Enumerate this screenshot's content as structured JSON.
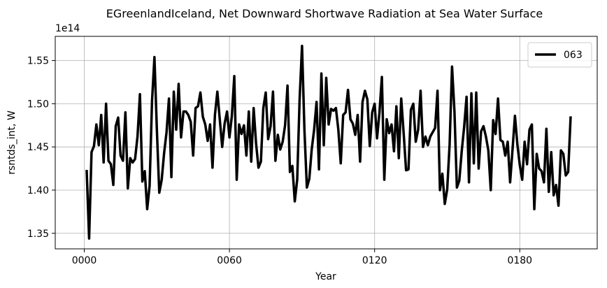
{
  "chart_data": {
    "type": "line",
    "title": "EGreenlandIceland, Net Downward Shortwave Radiation at Sea Water Surface",
    "xlabel": "Year",
    "ylabel": "rsntds_int, W",
    "y_offset_label": "1e14",
    "xlim": [
      -12,
      212
    ],
    "ylim": [
      1.332,
      1.578
    ],
    "x_ticks": [
      0,
      60,
      120,
      180
    ],
    "x_tick_labels": [
      "0000",
      "0060",
      "0120",
      "0180"
    ],
    "y_ticks": [
      1.35,
      1.4,
      1.45,
      1.5,
      1.55
    ],
    "y_tick_labels": [
      "1.35",
      "1.40",
      "1.45",
      "1.50",
      "1.55"
    ],
    "grid": true,
    "legend_position": "top-right",
    "series": [
      {
        "name": "063",
        "color": "#000000",
        "x_start": 1,
        "x_step": 1,
        "values": [
          1.422,
          1.344,
          1.444,
          1.451,
          1.476,
          1.452,
          1.487,
          1.432,
          1.5,
          1.434,
          1.43,
          1.406,
          1.474,
          1.484,
          1.44,
          1.434,
          1.49,
          1.402,
          1.437,
          1.432,
          1.436,
          1.462,
          1.511,
          1.41,
          1.422,
          1.378,
          1.405,
          1.503,
          1.554,
          1.47,
          1.397,
          1.412,
          1.443,
          1.467,
          1.506,
          1.415,
          1.514,
          1.47,
          1.523,
          1.461,
          1.491,
          1.491,
          1.487,
          1.479,
          1.44,
          1.495,
          1.497,
          1.513,
          1.485,
          1.476,
          1.457,
          1.476,
          1.426,
          1.487,
          1.514,
          1.482,
          1.45,
          1.477,
          1.491,
          1.461,
          1.486,
          1.532,
          1.412,
          1.476,
          1.465,
          1.475,
          1.44,
          1.491,
          1.433,
          1.495,
          1.454,
          1.426,
          1.433,
          1.495,
          1.513,
          1.459,
          1.474,
          1.514,
          1.434,
          1.464,
          1.447,
          1.456,
          1.475,
          1.521,
          1.421,
          1.428,
          1.387,
          1.412,
          1.505,
          1.567,
          1.469,
          1.403,
          1.413,
          1.447,
          1.47,
          1.502,
          1.424,
          1.535,
          1.452,
          1.53,
          1.476,
          1.494,
          1.492,
          1.495,
          1.47,
          1.431,
          1.487,
          1.49,
          1.516,
          1.482,
          1.477,
          1.464,
          1.487,
          1.433,
          1.502,
          1.515,
          1.505,
          1.451,
          1.49,
          1.5,
          1.46,
          1.49,
          1.531,
          1.412,
          1.482,
          1.466,
          1.476,
          1.445,
          1.497,
          1.437,
          1.506,
          1.466,
          1.423,
          1.424,
          1.493,
          1.5,
          1.456,
          1.47,
          1.515,
          1.45,
          1.462,
          1.452,
          1.462,
          1.467,
          1.472,
          1.515,
          1.4,
          1.419,
          1.384,
          1.401,
          1.453,
          1.543,
          1.491,
          1.403,
          1.411,
          1.445,
          1.473,
          1.508,
          1.409,
          1.512,
          1.431,
          1.513,
          1.425,
          1.468,
          1.474,
          1.462,
          1.446,
          1.4,
          1.481,
          1.465,
          1.506,
          1.458,
          1.456,
          1.44,
          1.456,
          1.409,
          1.447,
          1.486,
          1.453,
          1.429,
          1.412,
          1.456,
          1.43,
          1.47,
          1.476,
          1.378,
          1.442,
          1.425,
          1.422,
          1.409,
          1.471,
          1.398,
          1.444,
          1.394,
          1.406,
          1.382,
          1.446,
          1.442,
          1.417,
          1.421,
          1.484
        ]
      }
    ]
  }
}
